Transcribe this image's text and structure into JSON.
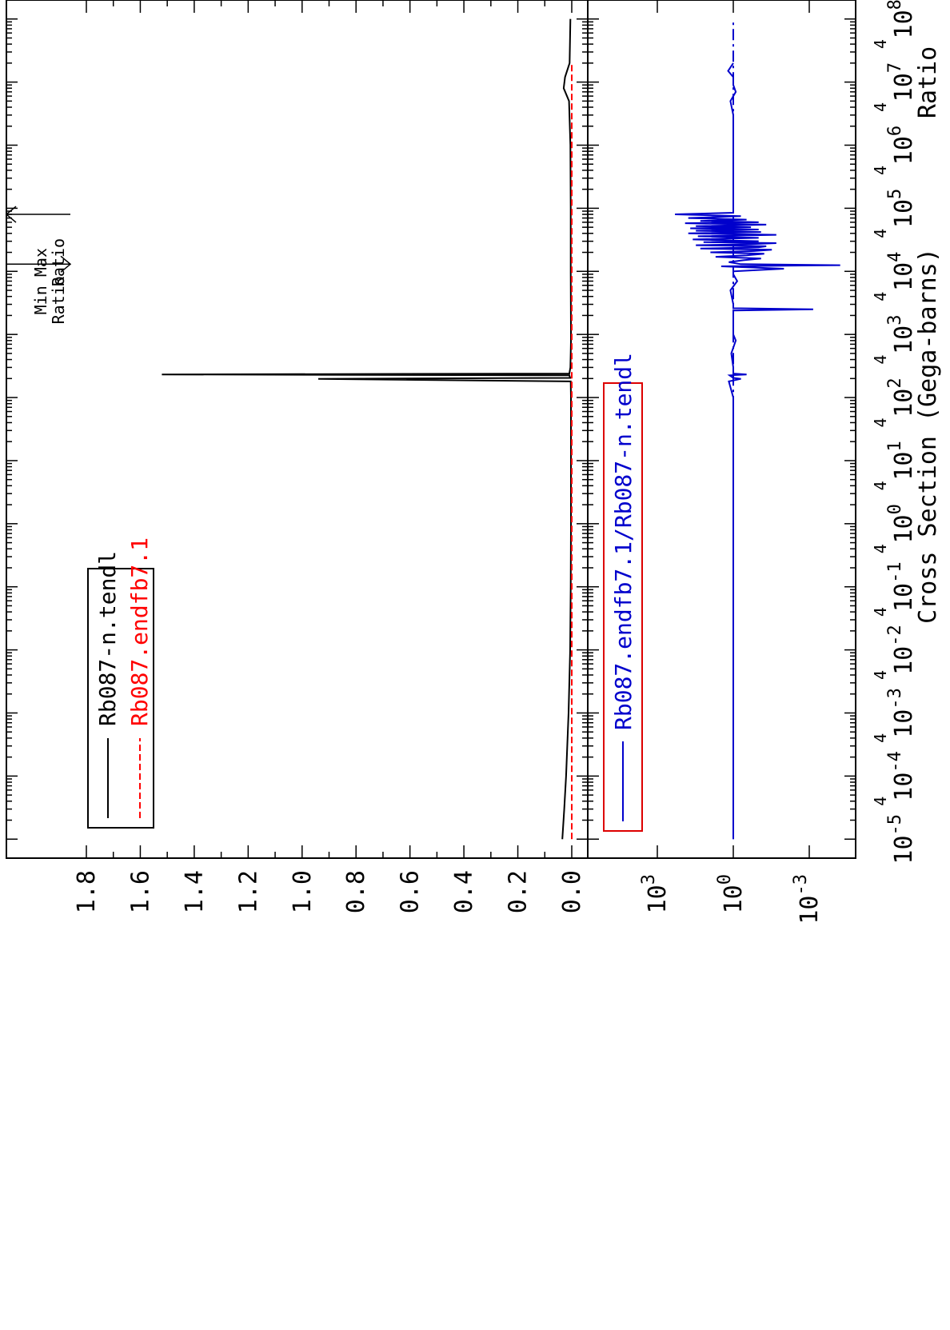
{
  "chart_data": [
    {
      "type": "line",
      "panel": "top",
      "ylabel": "Cross Section (Gega-barns)",
      "x_scale": "log",
      "xlim": [
        5e-06,
        200000000.0
      ],
      "ylim": [
        -0.08,
        1.88
      ],
      "y_ticks": [
        "0.0",
        "0.2",
        "0.4",
        "0.6",
        "0.8",
        "1.0",
        "1.2",
        "1.4",
        "1.6",
        "1.8"
      ],
      "legend": {
        "placement": "top-left",
        "entries": [
          "Rb087-n.tendl",
          "Rb087.endfb7.1"
        ]
      },
      "annotations": [
        {
          "text": [
            "Min",
            "Ratio"
          ],
          "x": 13000
        },
        {
          "text": [
            "Max",
            "Ratio"
          ],
          "x": 80000
        }
      ],
      "series": [
        {
          "name": "Rb087-n.tendl",
          "color": "#000000",
          "style": "solid",
          "x": [
            1e-05,
            3e-05,
            0.0001,
            0.001,
            0.01,
            0.1,
            1,
            10,
            100,
            180,
            198,
            205,
            225,
            232,
            240,
            300,
            500,
            800,
            1000,
            10000,
            20000,
            50000,
            100000,
            1000000,
            5000000,
            8000000,
            12000000,
            20000000,
            100000000
          ],
          "y": [
            0.035,
            0.028,
            0.021,
            0.012,
            0.006,
            0.004,
            0.003,
            0.003,
            0.003,
            0.004,
            0.94,
            0.006,
            0.009,
            1.52,
            0.009,
            0.005,
            0.004,
            0.003,
            0.003,
            0.004,
            0.004,
            0.004,
            0.004,
            0.005,
            0.01,
            0.03,
            0.025,
            0.008,
            0.005
          ]
        },
        {
          "name": "Rb087.endfb7.1",
          "color": "#ff0000",
          "style": "dashed",
          "x": [
            1e-05,
            0.0001,
            0.001,
            0.01,
            1,
            100,
            10000,
            1000000,
            20000000
          ],
          "y": [
            0.0,
            0.0,
            0.0,
            0.0,
            0.0,
            0.0,
            0.0,
            0.0,
            0.0
          ]
        }
      ]
    },
    {
      "type": "line",
      "panel": "bottom",
      "ylabel": "Ratio",
      "x_scale": "log",
      "y_scale": "log",
      "xlim": [
        5e-06,
        200000000.0
      ],
      "ylim": [
        1e-05,
        100000.0
      ],
      "x_ticks": [
        "10-5",
        "10-4",
        "10-3",
        "10-2",
        "10-1",
        "100",
        "101",
        "102",
        "103",
        "104",
        "105",
        "106",
        "107",
        "108"
      ],
      "y_ticks": [
        "103",
        "100",
        "10-3"
      ],
      "legend": {
        "placement": "bottom-left",
        "entries": [
          "Rb087.endfb7.1/Rb087-n.tendl"
        ]
      },
      "series": [
        {
          "name": "Rb087.endfb7.1/Rb087-n.tendl",
          "color": "#0000cc",
          "x": [
            1e-05,
            0.001,
            1,
            100,
            180,
            198,
            205,
            225,
            232,
            240,
            300,
            500,
            800,
            1000,
            2000,
            2400,
            2500,
            2600,
            3000,
            5000,
            7000,
            9000,
            10000,
            11000,
            12000,
            12500,
            13000,
            14000,
            15000,
            16000,
            17000,
            18000,
            19000,
            20000,
            21000,
            22000,
            23000,
            24000,
            25000,
            26000,
            27000,
            28000,
            29000,
            30000,
            32000,
            34000,
            36000,
            38000,
            40000,
            42000,
            44000,
            46000,
            48000,
            50000,
            52000,
            55000,
            58000,
            60000,
            63000,
            66000,
            70000,
            75000,
            80000,
            85000,
            100000,
            300000,
            1000000,
            3000000,
            5000000,
            7000000,
            9000000,
            12000000,
            15000000,
            20000000
          ],
          "y": [
            1,
            1,
            1,
            1,
            1.5,
            0.5,
            1,
            1.4,
            0.3,
            1,
            1,
            1.2,
            0.8,
            1,
            1,
            1,
            0.0007,
            1,
            1,
            1.3,
            0.7,
            1,
            1,
            0.01,
            3,
            6e-05,
            0.5,
            1.5,
            0.4,
            0.08,
            5,
            0.3,
            0.06,
            8,
            0.15,
            0.03,
            20,
            0.1,
            0.05,
            30,
            0.2,
            0.02,
            15,
            0.1,
            40,
            0.1,
            25,
            0.02,
            60,
            0.08,
            30,
            0.1,
            50,
            0.2,
            30,
            0.05,
            80,
            0.1,
            20,
            0.3,
            60,
            0.5,
            200,
            1,
            1,
            1,
            1,
            1,
            1.3,
            0.8,
            1,
            1,
            1.6,
            1
          ]
        },
        {
          "name": "",
          "color": "#0000cc",
          "style": "dashdot",
          "x": [
            1e-05,
            100000000
          ],
          "y": [
            1,
            1
          ]
        }
      ]
    }
  ]
}
